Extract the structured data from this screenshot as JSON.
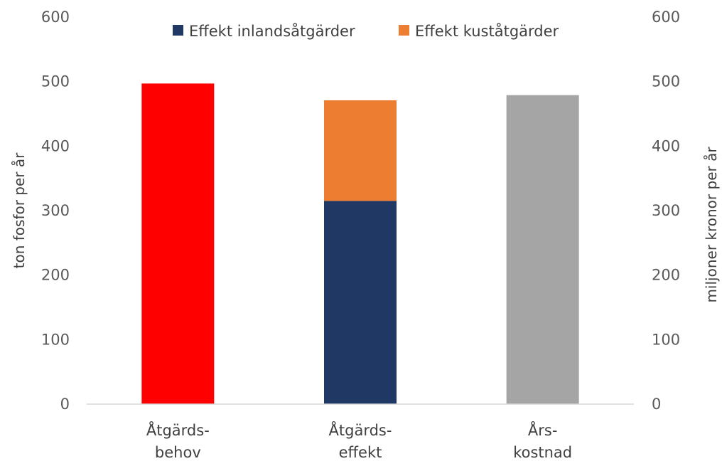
{
  "chart_data": {
    "type": "bar",
    "stacked": true,
    "categories": [
      [
        "Åtgärds-",
        "behov"
      ],
      [
        "Åtgärds-",
        "effekt"
      ],
      [
        "Års-",
        "kostnad"
      ]
    ],
    "series": [
      {
        "key": "behov",
        "values": [
          497,
          0,
          0
        ],
        "color": "#ff0000",
        "axis": "left"
      },
      {
        "name": "Effekt inlandsåtgärder",
        "key": "inland",
        "values": [
          0,
          315,
          0
        ],
        "color": "#203864",
        "axis": "left"
      },
      {
        "name": "Effekt kuståtgärder",
        "key": "kust",
        "values": [
          0,
          156,
          0
        ],
        "color": "#ed7d31",
        "axis": "left"
      },
      {
        "key": "kostnad",
        "values": [
          0,
          0,
          479
        ],
        "color": "#a5a5a5",
        "axis": "right"
      }
    ],
    "legend": {
      "position": "top",
      "entries": [
        "Effekt inlandsåtgärder",
        "Effekt kuståtgärder"
      ]
    },
    "ylabel": "ton fosfor per år",
    "y2label": "miljoner kronor per år",
    "ylim": [
      0,
      600
    ],
    "y2lim": [
      0,
      600
    ],
    "yticks": [
      "0",
      "100",
      "200",
      "300",
      "400",
      "500",
      "600"
    ],
    "y2ticks": [
      "0",
      "100",
      "200",
      "300",
      "400",
      "500",
      "600"
    ],
    "grid": false
  }
}
